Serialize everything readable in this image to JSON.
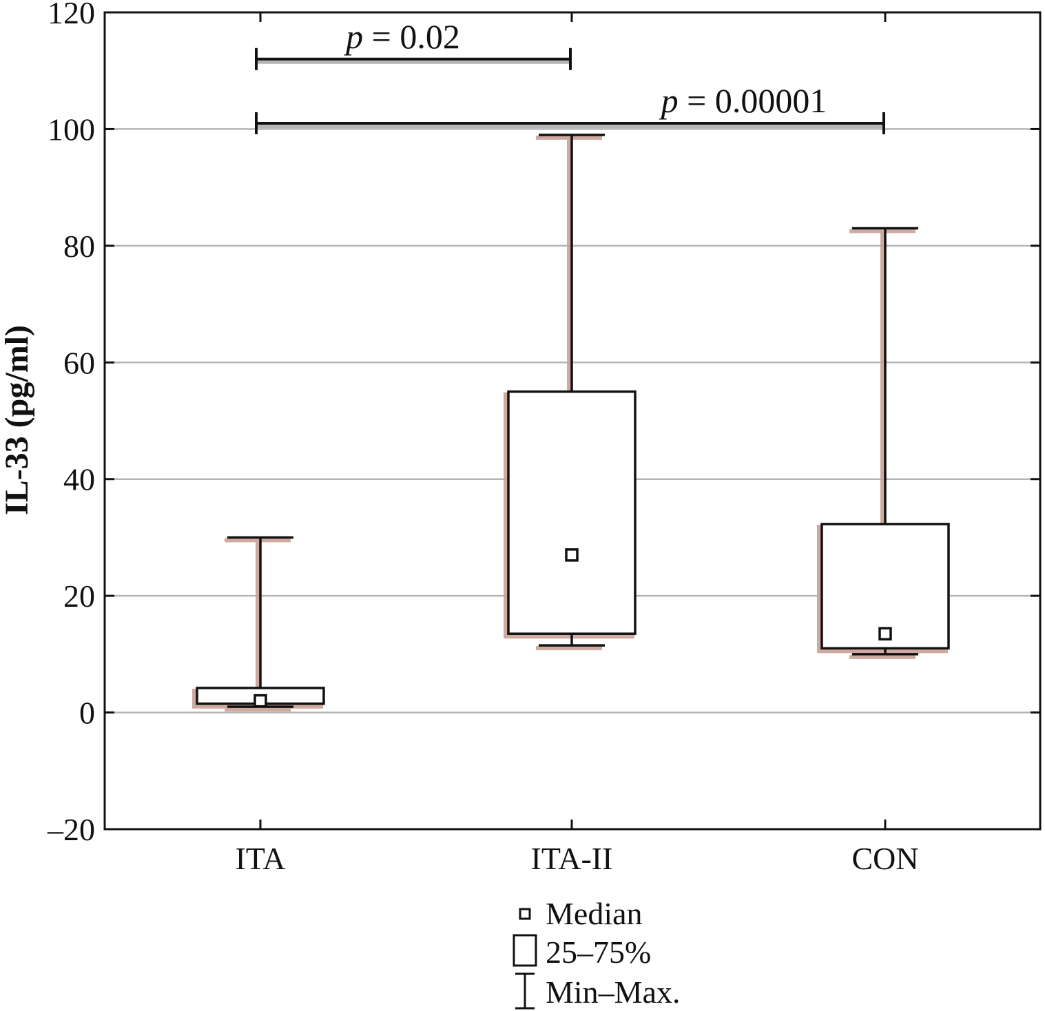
{
  "chart_data": {
    "type": "box",
    "ylabel": "IL-33 (pg/ml)",
    "xlabel": "",
    "ylim": [
      -20,
      120
    ],
    "yticks": [
      -20,
      0,
      20,
      40,
      60,
      80,
      100,
      120
    ],
    "ytick_labels": [
      "–20",
      "0",
      "20",
      "40",
      "60",
      "80",
      "100",
      "120"
    ],
    "grid": true,
    "categories": [
      "ITA",
      "ITA-II",
      "CON"
    ],
    "boxes": [
      {
        "category": "ITA",
        "min": 1,
        "q1": 1.5,
        "median": 2,
        "q3": 4.2,
        "max": 30
      },
      {
        "category": "ITA-II",
        "min": 11.5,
        "q1": 13.5,
        "median": 27,
        "q3": 55,
        "max": 99
      },
      {
        "category": "CON",
        "min": 10,
        "q1": 11,
        "median": 13.5,
        "q3": 32.3,
        "max": 83
      }
    ],
    "comparisons": [
      {
        "from": "ITA",
        "to": "ITA-II",
        "y": 112,
        "p_symbol": "p",
        "p_value": " = 0.02"
      },
      {
        "from": "ITA",
        "to": "CON",
        "y": 101,
        "p_symbol": "p",
        "p_value": " = 0.00001"
      }
    ],
    "legend": {
      "position": "bottom-center",
      "entries": [
        {
          "symbol": "median-square",
          "label": "Median"
        },
        {
          "symbol": "box",
          "label": "25–75%"
        },
        {
          "symbol": "whisker",
          "label": "Min–Max."
        }
      ]
    },
    "colors": {
      "line": "#111111",
      "grid": "#b5b5b5",
      "shadow": "#c9a197"
    }
  }
}
